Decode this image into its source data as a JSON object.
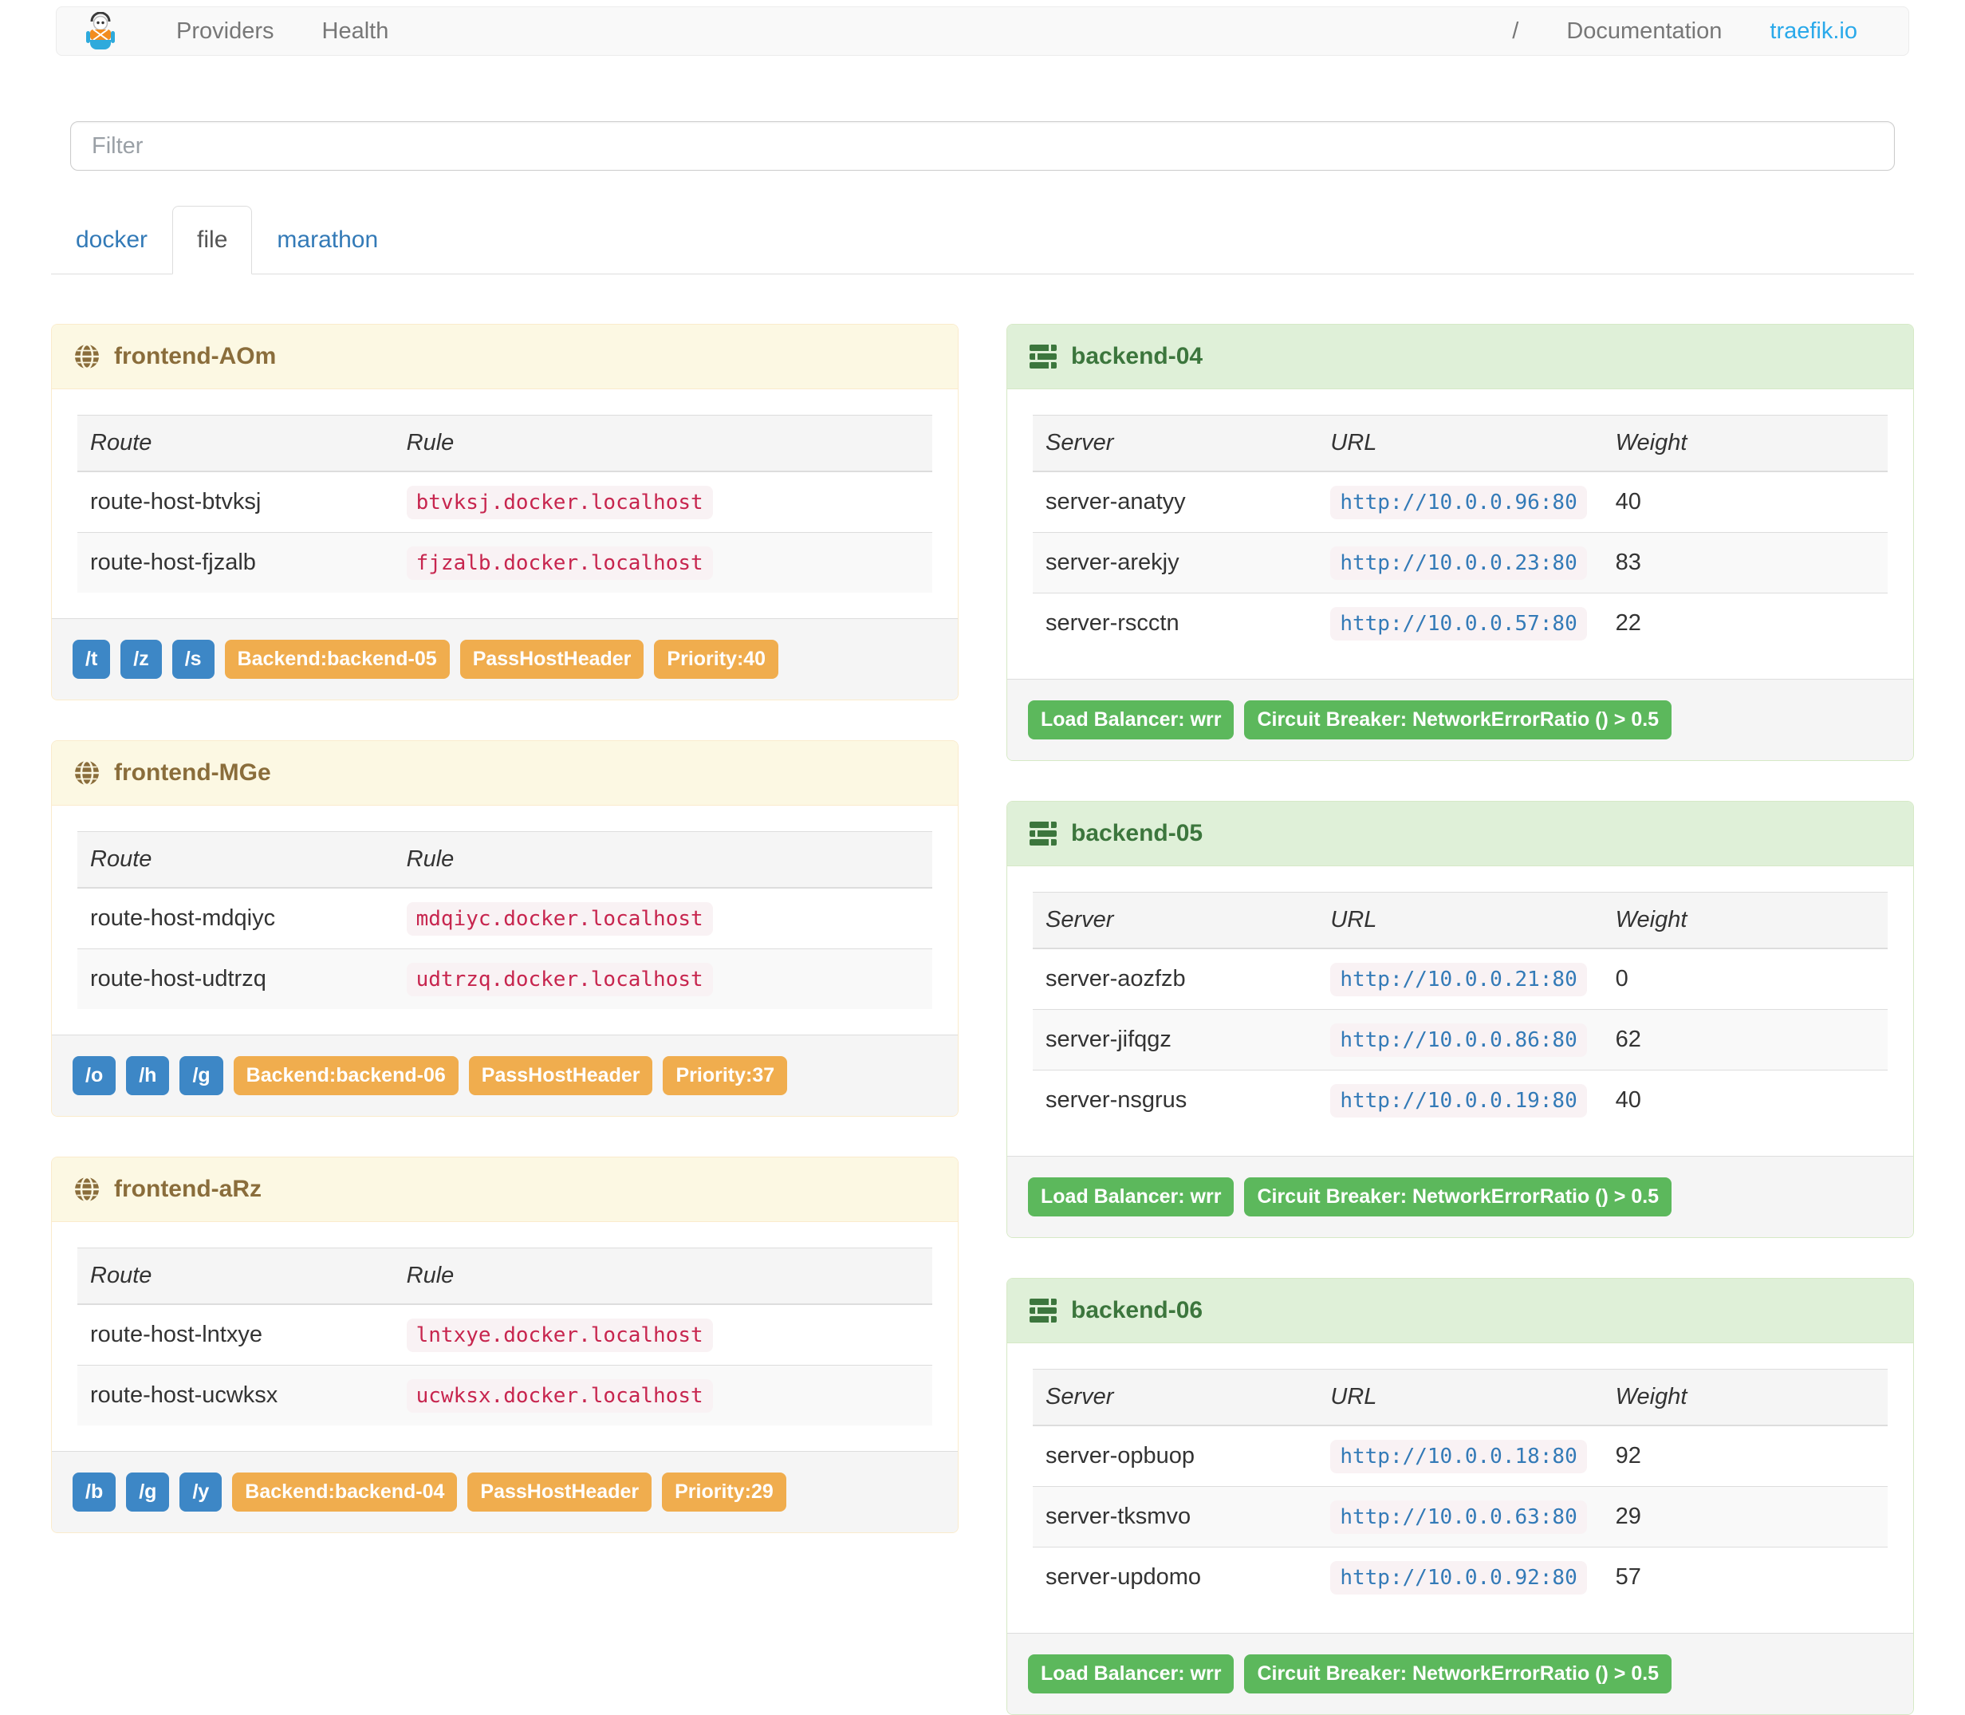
{
  "navbar": {
    "providers": "Providers",
    "health": "Health",
    "separator": "/",
    "documentation": "Documentation",
    "site": "traefik.io"
  },
  "filter": {
    "placeholder": "Filter",
    "value": ""
  },
  "tabs": [
    {
      "label": "docker",
      "active": false
    },
    {
      "label": "file",
      "active": true
    },
    {
      "label": "marathon",
      "active": false
    }
  ],
  "frontends": [
    {
      "name": "frontend-AOm",
      "columns": [
        "Route",
        "Rule"
      ],
      "rows": [
        {
          "route": "route-host-btvksj",
          "rule": "btvksj.docker.localhost"
        },
        {
          "route": "route-host-fjzalb",
          "rule": "fjzalb.docker.localhost"
        }
      ],
      "paths": [
        "/t",
        "/z",
        "/s"
      ],
      "tags": [
        "Backend:backend-05",
        "PassHostHeader",
        "Priority:40"
      ]
    },
    {
      "name": "frontend-MGe",
      "columns": [
        "Route",
        "Rule"
      ],
      "rows": [
        {
          "route": "route-host-mdqiyc",
          "rule": "mdqiyc.docker.localhost"
        },
        {
          "route": "route-host-udtrzq",
          "rule": "udtrzq.docker.localhost"
        }
      ],
      "paths": [
        "/o",
        "/h",
        "/g"
      ],
      "tags": [
        "Backend:backend-06",
        "PassHostHeader",
        "Priority:37"
      ]
    },
    {
      "name": "frontend-aRz",
      "columns": [
        "Route",
        "Rule"
      ],
      "rows": [
        {
          "route": "route-host-lntxye",
          "rule": "lntxye.docker.localhost"
        },
        {
          "route": "route-host-ucwksx",
          "rule": "ucwksx.docker.localhost"
        }
      ],
      "paths": [
        "/b",
        "/g",
        "/y"
      ],
      "tags": [
        "Backend:backend-04",
        "PassHostHeader",
        "Priority:29"
      ]
    }
  ],
  "backends": [
    {
      "name": "backend-04",
      "columns": [
        "Server",
        "URL",
        "Weight"
      ],
      "rows": [
        {
          "server": "server-anatyy",
          "url": "http://10.0.0.96:80",
          "weight": "40"
        },
        {
          "server": "server-arekjy",
          "url": "http://10.0.0.23:80",
          "weight": "83"
        },
        {
          "server": "server-rscctn",
          "url": "http://10.0.0.57:80",
          "weight": "22"
        }
      ],
      "tags": [
        "Load Balancer: wrr",
        "Circuit Breaker: NetworkErrorRatio () > 0.5"
      ]
    },
    {
      "name": "backend-05",
      "columns": [
        "Server",
        "URL",
        "Weight"
      ],
      "rows": [
        {
          "server": "server-aozfzb",
          "url": "http://10.0.0.21:80",
          "weight": "0"
        },
        {
          "server": "server-jifqgz",
          "url": "http://10.0.0.86:80",
          "weight": "62"
        },
        {
          "server": "server-nsgrus",
          "url": "http://10.0.0.19:80",
          "weight": "40"
        }
      ],
      "tags": [
        "Load Balancer: wrr",
        "Circuit Breaker: NetworkErrorRatio () > 0.5"
      ]
    },
    {
      "name": "backend-06",
      "columns": [
        "Server",
        "URL",
        "Weight"
      ],
      "rows": [
        {
          "server": "server-opbuop",
          "url": "http://10.0.0.18:80",
          "weight": "92"
        },
        {
          "server": "server-tksmvo",
          "url": "http://10.0.0.63:80",
          "weight": "29"
        },
        {
          "server": "server-updomo",
          "url": "http://10.0.0.92:80",
          "weight": "57"
        }
      ],
      "tags": [
        "Load Balancer: wrr",
        "Circuit Breaker: NetworkErrorRatio () > 0.5"
      ]
    }
  ],
  "colors": {
    "brand_link": "#2aa9ea",
    "tab_link": "#337ab7",
    "warning_header_bg": "#fcf8e3",
    "warning_header_text": "#8a6d3b",
    "success_header_bg": "#dff0d8",
    "success_header_text": "#3c763d",
    "rule_code_text": "#c7254e",
    "url_code_text": "#337ab7",
    "code_bg": "#f9f2f4",
    "badge_blue": "#3d87c6",
    "badge_orange": "#f0ad4e",
    "badge_green": "#5cb85c"
  }
}
